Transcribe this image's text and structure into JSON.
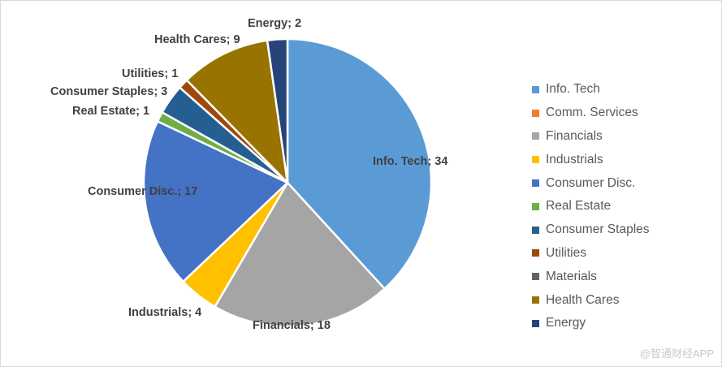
{
  "chart_data": {
    "type": "pie",
    "title": "",
    "categories": [
      "Info. Tech",
      "Comm. Services",
      "Financials",
      "Industrials",
      "Consumer Disc.",
      "Real Estate",
      "Consumer Staples",
      "Utilities",
      "Materials",
      "Health Cares",
      "Energy"
    ],
    "values": [
      34,
      0,
      18,
      4,
      17,
      1,
      3,
      1,
      0,
      9,
      2
    ],
    "colors": [
      "#5b9bd5",
      "#ed7d31",
      "#a5a5a5",
      "#ffc000",
      "#4472c4",
      "#70ad47",
      "#255e91",
      "#9e480e",
      "#636363",
      "#997300",
      "#264478"
    ],
    "data_labels": [
      "Info. Tech; 34",
      "",
      "Financials; 18",
      "Industrials; 4",
      "Consumer Disc.; 17",
      "Real Estate; 1",
      "Consumer Staples; 3",
      "Utilities; 1",
      "",
      "Health Cares; 9",
      "Energy; 2"
    ],
    "legend": {
      "position": "right",
      "items": [
        "Info. Tech",
        "Comm. Services",
        "Financials",
        "Industrials",
        "Consumer Disc.",
        "Real Estate",
        "Consumer Staples",
        "Utilities",
        "Materials",
        "Health Cares",
        "Energy"
      ]
    }
  },
  "watermark": "@智通财经APP"
}
